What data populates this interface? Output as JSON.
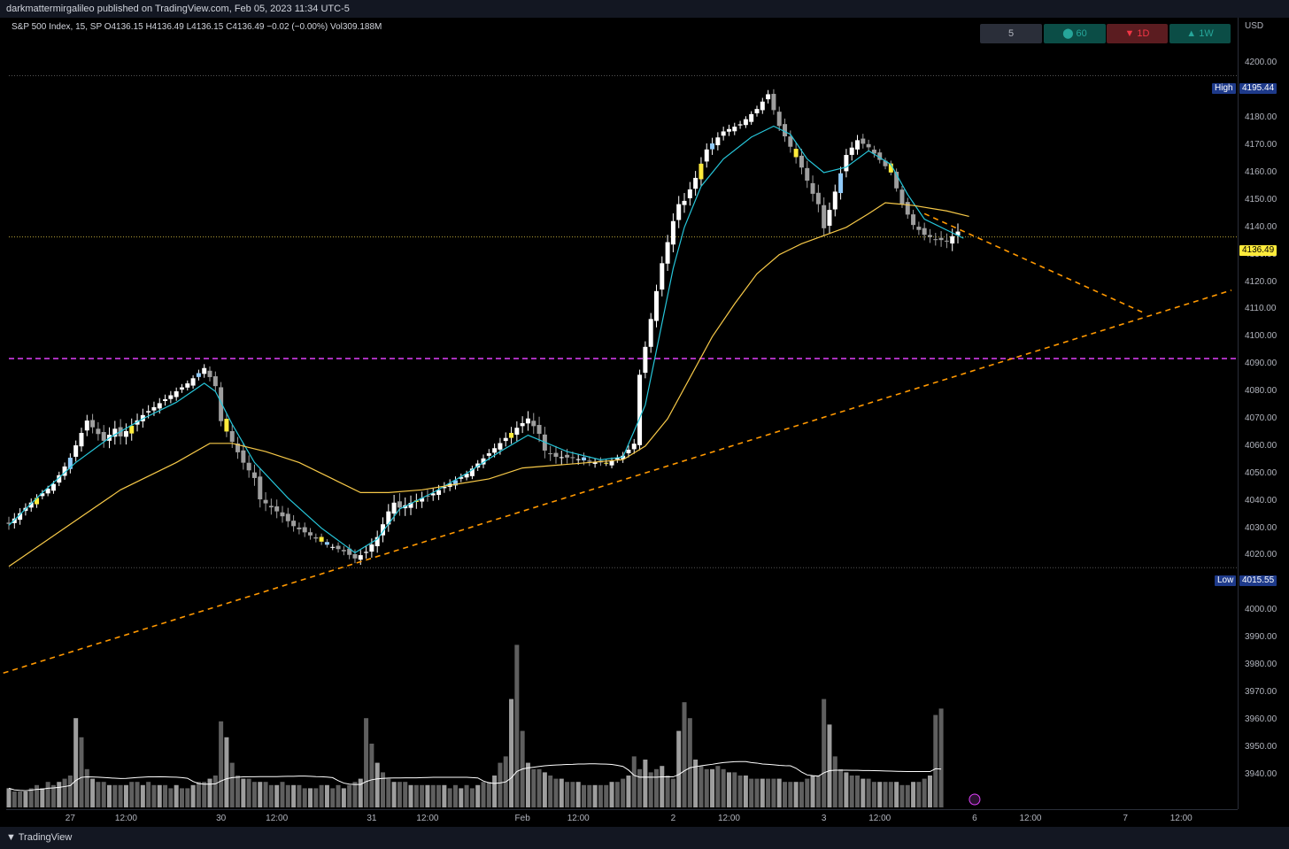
{
  "header": {
    "publish_line": "darkmattermirgalileo published on TradingView.com, Feb 05, 2023 11:34 UTC-5"
  },
  "legend": {
    "symbol": "S&P 500 Index, 15, SP",
    "open": "O4136.15",
    "high": "H4136.49",
    "low": "L4136.15",
    "close": "C4136.49",
    "change": "−0.02 (−0.00%)",
    "volume": "Vol309.188M"
  },
  "timeframes": [
    {
      "label": "5",
      "color": "#2a2e39",
      "text_color": "#b2b5be"
    },
    {
      "label": "⬤ 60",
      "color": "#0b4d46",
      "text_color": "#26a69a"
    },
    {
      "label": "▼ 1D",
      "color": "#5b1c20",
      "text_color": "#f23645"
    },
    {
      "label": "▲ 1W",
      "color": "#0b4d46",
      "text_color": "#26a69a"
    }
  ],
  "currency": "USD",
  "markers": {
    "high_label": "High",
    "high_value": "4195.44",
    "low_label": "Low",
    "low_value": "4015.55",
    "last_value": "4136.49"
  },
  "footer": {
    "brand": "TradingView"
  },
  "colors": {
    "ema_fast": "#26c6da",
    "ema_slow": "#f7c948",
    "trend": "#ff9800",
    "level": "#e040fb",
    "up": "#ffffff",
    "down": "#9e9e9e",
    "highlight_yellow": "#ffeb3b",
    "highlight_blue": "#90caf9"
  },
  "chart_data": {
    "type": "candlestick",
    "y_axis_ticks": [
      "4200.00",
      "4190.00",
      "4180.00",
      "4170.00",
      "4160.00",
      "4150.00",
      "4140.00",
      "4130.00",
      "4120.00",
      "4110.00",
      "4100.00",
      "4090.00",
      "4080.00",
      "4070.00",
      "4060.00",
      "4050.00",
      "4040.00",
      "4030.00",
      "4020.00",
      "4010.00",
      "4000.00",
      "3990.00",
      "3980.00",
      "3970.00",
      "3960.00",
      "3950.00",
      "3940.00"
    ],
    "y_axis_values": [
      4200,
      4190,
      4180,
      4170,
      4160,
      4150,
      4140,
      4130,
      4120,
      4110,
      4100,
      4090,
      4080,
      4070,
      4060,
      4050,
      4040,
      4030,
      4020,
      4010,
      4000,
      3990,
      3980,
      3970,
      3960,
      3950,
      3940
    ],
    "x_axis_ticks": [
      {
        "label": "27",
        "bar": 11
      },
      {
        "label": "12:00",
        "bar": 21
      },
      {
        "label": "30",
        "bar": 38
      },
      {
        "label": "12:00",
        "bar": 48
      },
      {
        "label": "31",
        "bar": 65
      },
      {
        "label": "12:00",
        "bar": 75
      },
      {
        "label": "Feb",
        "bar": 92
      },
      {
        "label": "12:00",
        "bar": 102
      },
      {
        "label": "2",
        "bar": 119
      },
      {
        "label": "12:00",
        "bar": 129
      },
      {
        "label": "3",
        "bar": 146
      },
      {
        "label": "12:00",
        "bar": 156
      },
      {
        "label": "6",
        "bar": 173
      },
      {
        "label": "12:00",
        "bar": 183
      },
      {
        "label": "7",
        "bar": 200
      },
      {
        "label": "12:00",
        "bar": 210
      }
    ],
    "y_range": [
      3935,
      4205
    ],
    "bar_range": [
      0,
      219
    ],
    "close_path": [
      [
        0,
        4033
      ],
      [
        4,
        4040
      ],
      [
        8,
        4046
      ],
      [
        11,
        4055
      ],
      [
        14,
        4068
      ],
      [
        17,
        4060
      ],
      [
        20,
        4066
      ],
      [
        24,
        4073
      ],
      [
        28,
        4078
      ],
      [
        32,
        4083
      ],
      [
        35,
        4088
      ],
      [
        37,
        4081
      ],
      [
        38,
        4068
      ],
      [
        40,
        4060
      ],
      [
        42,
        4052
      ],
      [
        45,
        4043
      ],
      [
        48,
        4038
      ],
      [
        51,
        4032
      ],
      [
        54,
        4028
      ],
      [
        57,
        4024
      ],
      [
        60,
        4021
      ],
      [
        62,
        4018
      ],
      [
        64,
        4020
      ],
      [
        66,
        4025
      ],
      [
        68,
        4034
      ],
      [
        70,
        4040
      ],
      [
        73,
        4042
      ],
      [
        76,
        4044
      ],
      [
        79,
        4047
      ],
      [
        82,
        4050
      ],
      [
        85,
        4055
      ],
      [
        88,
        4060
      ],
      [
        91,
        4065
      ],
      [
        93,
        4068
      ],
      [
        95,
        4062
      ],
      [
        98,
        4058
      ],
      [
        101,
        4057
      ],
      [
        104,
        4055
      ],
      [
        107,
        4054
      ],
      [
        110,
        4056
      ],
      [
        112,
        4060
      ],
      [
        113,
        4085
      ],
      [
        115,
        4105
      ],
      [
        117,
        4125
      ],
      [
        119,
        4140
      ],
      [
        121,
        4152
      ],
      [
        123,
        4160
      ],
      [
        125,
        4170
      ],
      [
        128,
        4176
      ],
      [
        131,
        4178
      ],
      [
        134,
        4183
      ],
      [
        136,
        4188
      ],
      [
        138,
        4176
      ],
      [
        140,
        4168
      ],
      [
        142,
        4160
      ],
      [
        144,
        4150
      ],
      [
        146,
        4142
      ],
      [
        148,
        4155
      ],
      [
        150,
        4168
      ],
      [
        152,
        4173
      ],
      [
        154,
        4170
      ],
      [
        156,
        4165
      ],
      [
        158,
        4160
      ],
      [
        160,
        4148
      ],
      [
        162,
        4140
      ],
      [
        164,
        4136
      ],
      [
        166,
        4134
      ],
      [
        168,
        4133
      ],
      [
        170,
        4136
      ]
    ],
    "ema_fast_path": [
      [
        0,
        4031
      ],
      [
        6,
        4043
      ],
      [
        12,
        4054
      ],
      [
        18,
        4063
      ],
      [
        24,
        4070
      ],
      [
        30,
        4076
      ],
      [
        35,
        4083
      ],
      [
        37,
        4080
      ],
      [
        40,
        4068
      ],
      [
        44,
        4054
      ],
      [
        50,
        4041
      ],
      [
        56,
        4030
      ],
      [
        62,
        4021
      ],
      [
        66,
        4026
      ],
      [
        70,
        4037
      ],
      [
        76,
        4043
      ],
      [
        82,
        4050
      ],
      [
        88,
        4058
      ],
      [
        93,
        4064
      ],
      [
        100,
        4058
      ],
      [
        106,
        4055
      ],
      [
        110,
        4056
      ],
      [
        114,
        4075
      ],
      [
        117,
        4105
      ],
      [
        119,
        4125
      ],
      [
        121,
        4140
      ],
      [
        124,
        4155
      ],
      [
        128,
        4165
      ],
      [
        133,
        4173
      ],
      [
        137,
        4177
      ],
      [
        140,
        4174
      ],
      [
        143,
        4165
      ],
      [
        146,
        4160
      ],
      [
        150,
        4162
      ],
      [
        154,
        4168
      ],
      [
        158,
        4163
      ],
      [
        161,
        4152
      ],
      [
        164,
        4143
      ],
      [
        168,
        4139
      ],
      [
        171,
        4136
      ]
    ],
    "ema_slow_path": [
      [
        0,
        4016
      ],
      [
        10,
        4030
      ],
      [
        20,
        4044
      ],
      [
        30,
        4054
      ],
      [
        36,
        4061
      ],
      [
        40,
        4061
      ],
      [
        46,
        4058
      ],
      [
        52,
        4054
      ],
      [
        58,
        4048
      ],
      [
        63,
        4043
      ],
      [
        68,
        4043
      ],
      [
        74,
        4044
      ],
      [
        80,
        4046
      ],
      [
        86,
        4048
      ],
      [
        92,
        4052
      ],
      [
        98,
        4053
      ],
      [
        104,
        4054
      ],
      [
        110,
        4055
      ],
      [
        114,
        4060
      ],
      [
        118,
        4070
      ],
      [
        122,
        4085
      ],
      [
        126,
        4100
      ],
      [
        130,
        4112
      ],
      [
        134,
        4123
      ],
      [
        138,
        4130
      ],
      [
        142,
        4134
      ],
      [
        146,
        4137
      ],
      [
        150,
        4140
      ],
      [
        154,
        4145
      ],
      [
        157,
        4149
      ],
      [
        162,
        4148
      ],
      [
        168,
        4146
      ],
      [
        172,
        4144
      ]
    ],
    "trendline_up": {
      "p1": [
        -1,
        3977
      ],
      "p2": [
        219,
        4117
      ]
    },
    "trendline_down": {
      "p1": [
        164,
        4145
      ],
      "p2": [
        203,
        4109
      ]
    },
    "horizontal_level": 4092,
    "volume_profile": [
      6,
      5,
      5,
      5,
      6,
      7,
      6,
      8,
      7,
      8,
      9,
      10,
      28,
      22,
      12,
      9,
      8,
      8,
      7,
      7,
      7,
      7,
      8,
      8,
      7,
      8,
      7,
      7,
      7,
      6,
      7,
      6,
      6,
      7,
      8,
      8,
      9,
      10,
      27,
      22,
      14,
      10,
      9,
      9,
      8,
      8,
      8,
      7,
      7,
      8,
      7,
      7,
      7,
      6,
      6,
      6,
      7,
      7,
      6,
      7,
      6,
      7,
      8,
      9,
      28,
      20,
      14,
      11,
      9,
      8,
      8,
      8,
      7,
      7,
      7,
      7,
      7,
      7,
      7,
      6,
      7,
      6,
      7,
      6,
      7,
      8,
      8,
      10,
      14,
      16,
      34,
      51,
      24,
      14,
      12,
      12,
      11,
      10,
      9,
      9,
      8,
      8,
      8,
      7,
      7,
      7,
      7,
      7,
      8,
      8,
      9,
      10,
      16,
      12,
      15,
      11,
      12,
      13,
      10,
      9,
      24,
      33,
      28,
      15,
      13,
      12,
      12,
      13,
      12,
      11,
      11,
      10,
      10,
      9,
      9,
      9,
      9,
      9,
      9,
      8,
      8,
      8,
      8,
      9,
      10,
      10,
      34,
      26,
      16,
      12,
      11,
      10,
      10,
      9,
      9,
      8,
      8,
      8,
      8,
      8,
      7,
      7,
      8,
      8,
      9,
      10,
      29,
      31
    ],
    "candles_scale_note": ""
  }
}
